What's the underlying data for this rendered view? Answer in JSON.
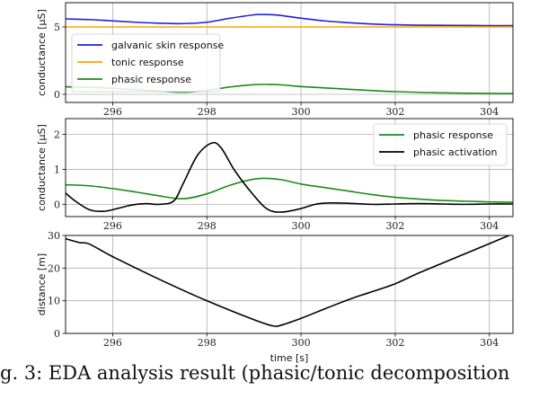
{
  "caption": "g. 3: EDA analysis result (phasic/tonic decomposition",
  "chart_data": [
    {
      "type": "line",
      "ylabel": "conductance [μS]",
      "xlim": [
        295,
        304.5
      ],
      "ylim": [
        -0.6,
        6.8
      ],
      "xticks": [
        296,
        298,
        300,
        302,
        304
      ],
      "yticks": [
        0,
        5
      ],
      "grid": true,
      "legend": "middle-left",
      "series": [
        {
          "name": "galvanic skin response",
          "color": "#1f1fd6",
          "x": [
            295,
            295.5,
            296,
            296.5,
            297,
            297.5,
            298,
            298.5,
            299,
            299.2,
            299.5,
            300,
            300.5,
            301,
            301.5,
            302,
            302.5,
            303,
            303.5,
            304,
            304.5
          ],
          "y": [
            5.6,
            5.55,
            5.45,
            5.35,
            5.28,
            5.25,
            5.35,
            5.65,
            5.9,
            5.92,
            5.88,
            5.65,
            5.45,
            5.32,
            5.22,
            5.16,
            5.13,
            5.12,
            5.11,
            5.1,
            5.1
          ]
        },
        {
          "name": "tonic response",
          "color": "#ffa500",
          "x": [
            295,
            304.5
          ],
          "y": [
            5.0,
            5.0
          ]
        },
        {
          "name": "phasic response",
          "color": "#1a8a1a",
          "x": [
            295,
            295.5,
            296,
            296.5,
            297,
            297.5,
            298,
            298.5,
            299,
            299.3,
            299.6,
            300,
            300.5,
            301,
            301.5,
            302,
            302.5,
            303,
            303.5,
            304,
            304.5
          ],
          "y": [
            0.56,
            0.53,
            0.45,
            0.35,
            0.24,
            0.16,
            0.3,
            0.55,
            0.72,
            0.74,
            0.7,
            0.58,
            0.48,
            0.38,
            0.28,
            0.2,
            0.15,
            0.11,
            0.09,
            0.07,
            0.06
          ]
        }
      ]
    },
    {
      "type": "line",
      "ylabel": "conductance [μS]",
      "xlim": [
        295,
        304.5
      ],
      "ylim": [
        -0.35,
        2.45
      ],
      "xticks": [
        296,
        298,
        300,
        302,
        304
      ],
      "yticks": [
        0,
        1,
        2
      ],
      "grid": true,
      "legend": "top-right",
      "series": [
        {
          "name": "phasic response",
          "color": "#1a8a1a",
          "x": [
            295,
            295.5,
            296,
            296.5,
            297,
            297.5,
            298,
            298.5,
            299,
            299.3,
            299.6,
            300,
            300.5,
            301,
            301.5,
            302,
            302.5,
            303,
            303.5,
            304,
            304.5
          ],
          "y": [
            0.56,
            0.53,
            0.45,
            0.35,
            0.24,
            0.16,
            0.3,
            0.55,
            0.72,
            0.74,
            0.7,
            0.58,
            0.48,
            0.38,
            0.28,
            0.2,
            0.15,
            0.11,
            0.09,
            0.07,
            0.06
          ]
        },
        {
          "name": "phasic activation",
          "color": "#000000",
          "x": [
            295,
            295.2,
            295.5,
            295.8,
            296.1,
            296.4,
            296.7,
            297,
            297.3,
            297.5,
            297.8,
            298.1,
            298.3,
            298.6,
            299,
            299.3,
            299.6,
            300,
            300.3,
            300.6,
            301,
            301.5,
            302,
            302.5,
            303,
            303.5,
            304,
            304.5
          ],
          "y": [
            0.32,
            0.1,
            -0.15,
            -0.2,
            -0.12,
            -0.02,
            0.02,
            0.0,
            0.1,
            0.6,
            1.4,
            1.75,
            1.62,
            0.95,
            0.25,
            -0.15,
            -0.22,
            -0.12,
            0.0,
            0.04,
            0.03,
            0.0,
            0.01,
            0.02,
            0.01,
            0.0,
            0.01,
            0.01
          ]
        }
      ]
    },
    {
      "type": "line",
      "ylabel": "distance [m]",
      "xlabel": "time [s]",
      "xlim": [
        295,
        304.5
      ],
      "ylim": [
        0,
        30
      ],
      "xticks": [
        296,
        298,
        300,
        302,
        304
      ],
      "yticks": [
        0,
        10,
        20,
        30
      ],
      "grid": true,
      "series": [
        {
          "color": "#000000",
          "x": [
            295,
            295.3,
            295.5,
            296,
            297,
            298,
            299,
            299.4,
            299.6,
            300,
            300.5,
            301,
            301.3,
            301.6,
            302,
            302.5,
            303,
            303.5,
            304,
            304.5
          ],
          "y": [
            29,
            27.8,
            27.4,
            23.5,
            16.5,
            10,
            4.2,
            2.3,
            2.6,
            4.6,
            7.5,
            10.3,
            11.8,
            13.2,
            15.2,
            18.5,
            21.5,
            24.5,
            27.5,
            30.5
          ]
        }
      ]
    }
  ]
}
